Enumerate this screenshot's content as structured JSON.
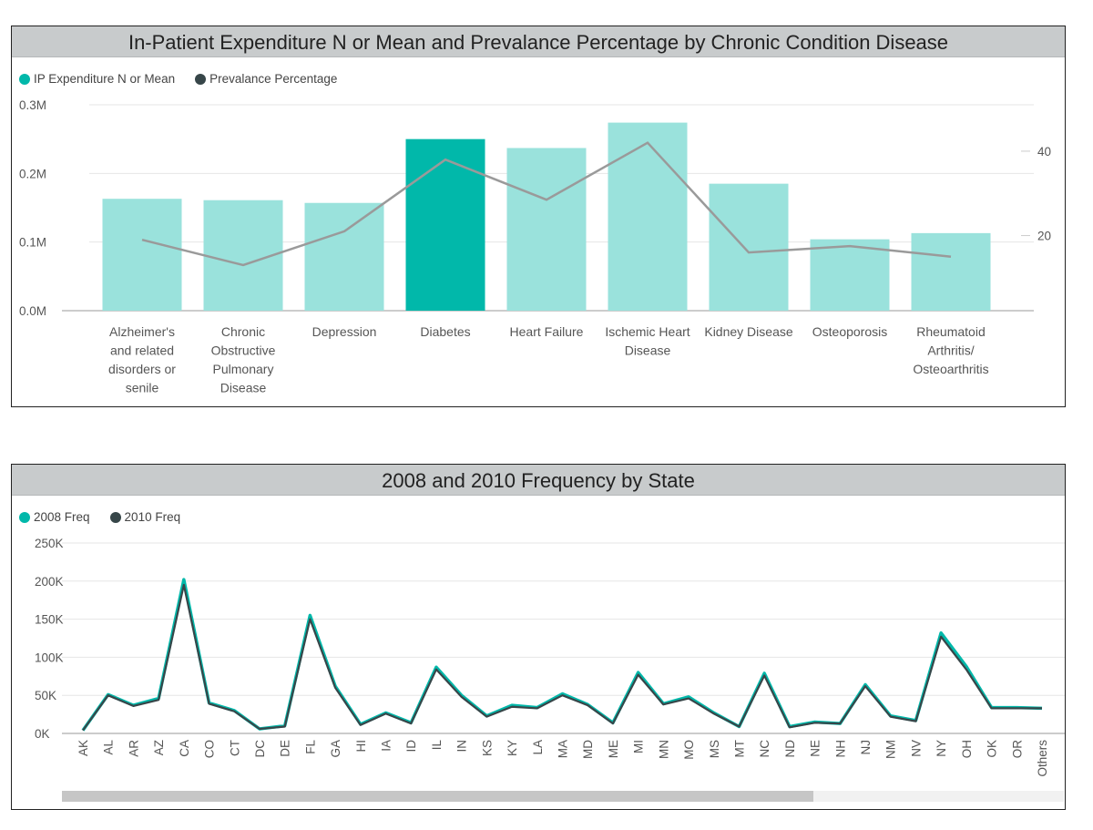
{
  "charts": [
    {
      "title": "In-Patient Expenditure N  or Mean  and Prevalance Percentage by Chronic Condition Disease",
      "legend": [
        {
          "label": "IP Expenditure N or Mean",
          "color": "#01b8aa"
        },
        {
          "label": "Prevalance Percentage",
          "color": "#374649"
        }
      ]
    },
    {
      "title": "2008 and 2010 Frequency by State",
      "legend": [
        {
          "label": "2008 Freq",
          "color": "#01b8aa"
        },
        {
          "label": "2010 Freq",
          "color": "#374649"
        }
      ],
      "scrollbar": {
        "visible_fraction": 0.75
      }
    }
  ],
  "chart_data": [
    {
      "type": "bar",
      "title": "In-Patient Expenditure N  or Mean  and Prevalance Percentage by Chronic Condition Disease",
      "categories": [
        [
          "Alzheimer's",
          "and related",
          "disorders or",
          "senile"
        ],
        [
          "Chronic",
          "Obstructive",
          "Pulmonary",
          "Disease"
        ],
        [
          "Depression"
        ],
        [
          "Diabetes"
        ],
        [
          "Heart Failure"
        ],
        [
          "Ischemic Heart",
          "Disease"
        ],
        [
          "Kidney Disease"
        ],
        [
          "Osteoporosis"
        ],
        [
          "Rheumatoid",
          "Arthritis/",
          "Osteoarthritis"
        ]
      ],
      "series": [
        {
          "name": "IP Expenditure N or Mean",
          "kind": "bar",
          "axis": "left",
          "values": [
            163000,
            161000,
            157000,
            250000,
            237000,
            274000,
            185000,
            104000,
            113000
          ],
          "color": "#01b8aa",
          "highlighted_index": 3
        },
        {
          "name": "Prevalance Percentage",
          "kind": "line",
          "axis": "right",
          "values": [
            19,
            13,
            21,
            38,
            28.5,
            42,
            16,
            17.5,
            15
          ],
          "color": "#9a9a9a"
        }
      ],
      "yleft": {
        "ticks": [
          "0.0M",
          "0.1M",
          "0.2M",
          "0.3M"
        ],
        "tick_values": [
          0,
          100000,
          200000,
          300000
        ],
        "ylim": [
          0,
          300000
        ]
      },
      "yright": {
        "ticks": [
          "20",
          "40"
        ],
        "tick_values": [
          20,
          40
        ],
        "ylim": [
          2.2,
          51
        ]
      },
      "grid": true
    },
    {
      "type": "line",
      "title": "2008 and 2010 Frequency by State",
      "categories": [
        "AK",
        "AL",
        "AR",
        "AZ",
        "CA",
        "CO",
        "CT",
        "DC",
        "DE",
        "FL",
        "GA",
        "HI",
        "IA",
        "ID",
        "IL",
        "IN",
        "KS",
        "KY",
        "LA",
        "MA",
        "MD",
        "ME",
        "MI",
        "MN",
        "MO",
        "MS",
        "MT",
        "NC",
        "ND",
        "NE",
        "NH",
        "NJ",
        "NM",
        "NV",
        "NY",
        "OH",
        "OK",
        "OR",
        "Others"
      ],
      "series": [
        {
          "name": "2008 Freq",
          "color": "#01b8aa",
          "values": [
            4000,
            51000,
            37000,
            46000,
            202000,
            40000,
            30000,
            6000,
            10000,
            155000,
            62000,
            12000,
            27000,
            14000,
            87000,
            50000,
            23000,
            37000,
            34000,
            52000,
            38000,
            14000,
            80000,
            39000,
            48000,
            27000,
            9000,
            79000,
            9000,
            15000,
            13000,
            64000,
            23000,
            17000,
            132000,
            88000,
            34000,
            34000,
            33000
          ]
        },
        {
          "name": "2010 Freq",
          "color": "#374649",
          "values": [
            4000,
            50000,
            36000,
            44000,
            195000,
            39000,
            29000,
            6000,
            9000,
            150000,
            60000,
            11000,
            26000,
            13000,
            84000,
            48000,
            22000,
            35000,
            33000,
            50000,
            37000,
            13000,
            77000,
            38000,
            46000,
            26000,
            9000,
            76000,
            8000,
            14000,
            13000,
            62000,
            22000,
            16000,
            127000,
            84000,
            33000,
            33000,
            33000
          ]
        }
      ],
      "y": {
        "ticks": [
          "0K",
          "50K",
          "100K",
          "150K",
          "200K",
          "250K"
        ],
        "tick_values": [
          0,
          50000,
          100000,
          150000,
          200000,
          250000
        ],
        "ylim": [
          0,
          250000
        ]
      },
      "grid": true
    }
  ]
}
